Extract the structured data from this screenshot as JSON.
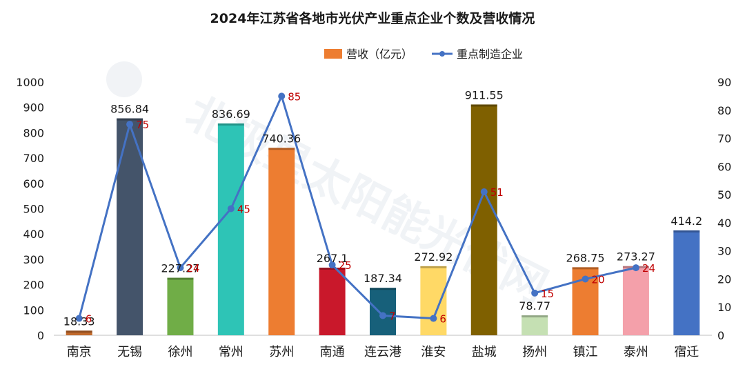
{
  "chart_data": {
    "type": "bar",
    "title": "2024年江苏省各地市光伏产业重点企业个数及营收情况",
    "categories": [
      "南京",
      "无锡",
      "徐州",
      "常州",
      "苏州",
      "南通",
      "连云港",
      "淮安",
      "盐城",
      "扬州",
      "镇江",
      "泰州",
      "宿迁"
    ],
    "series": [
      {
        "name": "营收（亿元）",
        "type": "bar",
        "axis": "left",
        "values": [
          18.33,
          856.84,
          227.27,
          836.69,
          740.36,
          267.1,
          187.34,
          272.92,
          911.55,
          78.77,
          268.75,
          273.27,
          414.2
        ],
        "labels": [
          "18.33",
          "856.84",
          "227.27",
          "836.69",
          "740.36",
          "267.1",
          "187.34",
          "272.92",
          "911.55",
          "78.77",
          "268.75",
          "273.27",
          "414.2"
        ],
        "colors": [
          "#c0692b",
          "#44546a",
          "#70ad47",
          "#2ec4b6",
          "#ed7d31",
          "#c9182b",
          "#17607a",
          "#ffd966",
          "#7f6000",
          "#c5e0b3",
          "#ed7d31",
          "#f4a0aa",
          "#4472c4"
        ]
      },
      {
        "name": "重点制造企业",
        "type": "line",
        "axis": "right",
        "values": [
          6,
          75,
          24,
          45,
          85,
          25,
          7,
          6,
          51,
          15,
          20,
          24,
          null
        ],
        "labels": [
          "6",
          "75",
          "24",
          "45",
          "85",
          "25",
          "7",
          "6",
          "51",
          "15",
          "20",
          "24",
          ""
        ],
        "color": "#4472c4",
        "label_color": "#c00000"
      }
    ],
    "ylim_left": [
      0,
      1000
    ],
    "yticks_left": [
      "0",
      "100",
      "200",
      "300",
      "400",
      "500",
      "600",
      "700",
      "800",
      "900",
      "1000"
    ],
    "ylim_right": [
      0,
      90
    ],
    "yticks_right": [
      "0",
      "10",
      "20",
      "30",
      "40",
      "50",
      "60",
      "70",
      "80",
      "90"
    ],
    "legend_position": "top-right",
    "grid": false,
    "watermark": "北极星太阳能光伏网"
  }
}
